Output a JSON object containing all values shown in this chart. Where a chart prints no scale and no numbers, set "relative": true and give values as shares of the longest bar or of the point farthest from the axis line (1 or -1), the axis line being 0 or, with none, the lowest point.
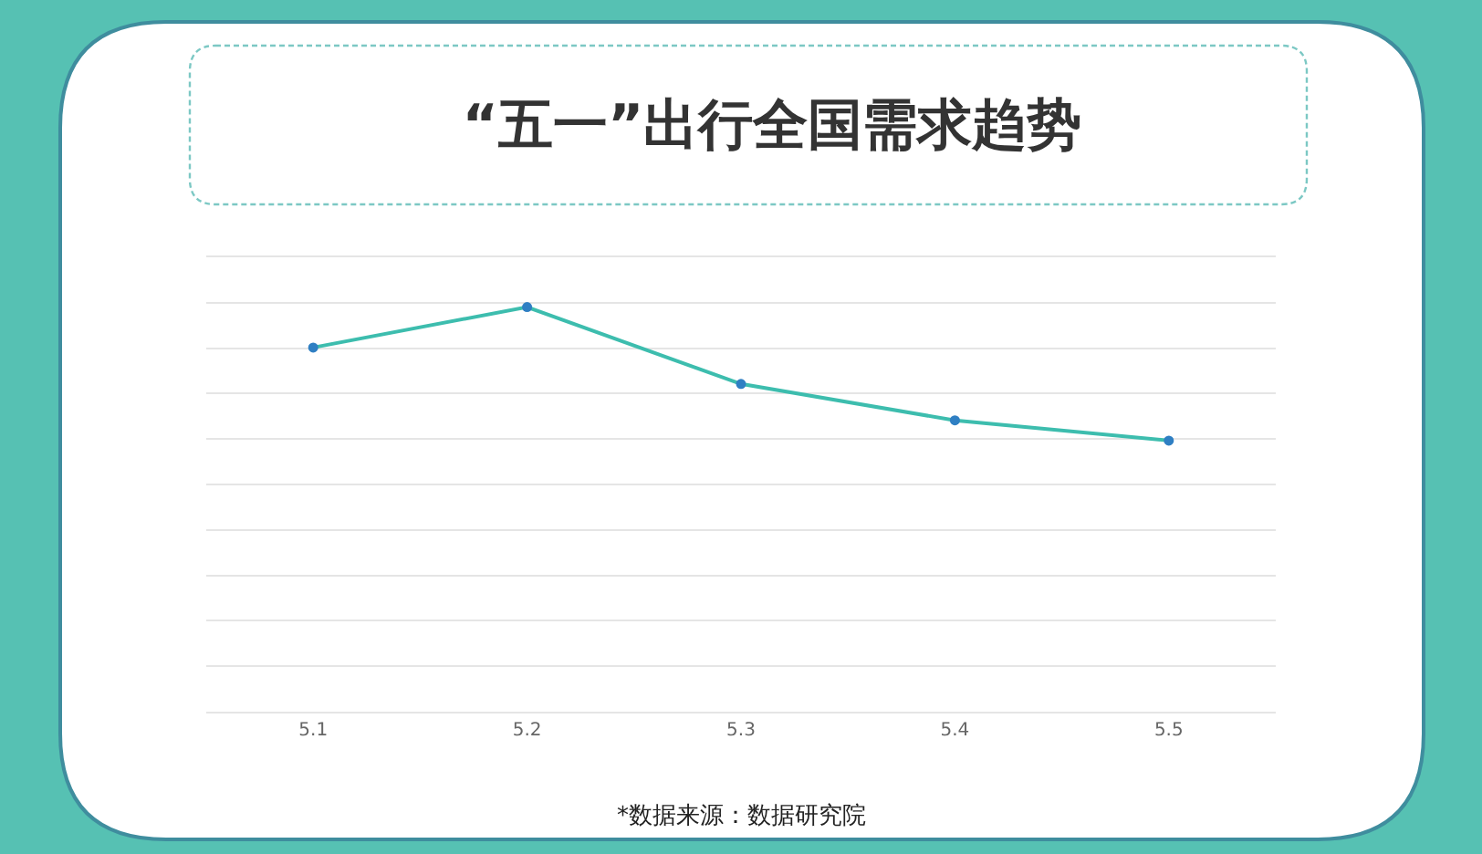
{
  "chart_data": {
    "type": "line",
    "title": "“五一”出行全国需求趋势",
    "categories": [
      "5.1",
      "5.2",
      "5.3",
      "5.4",
      "5.5"
    ],
    "series": [
      {
        "color": "#3dbdae",
        "values": [
          0.9,
          1,
          0.81,
          0.72,
          0.67
        ]
      }
    ],
    "relative": true,
    "grid": "y",
    "marker": "circle",
    "line_style": "solid",
    "annotations": [
      "*数据来源：数据研究院"
    ]
  }
}
